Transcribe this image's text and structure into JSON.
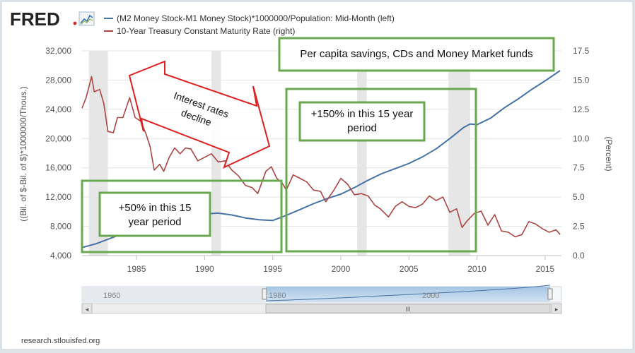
{
  "header": {
    "logo_text": "FRED",
    "logo_accent_color": "#cc2d2d",
    "logo_icon": "line-chart-icon"
  },
  "legend": [
    {
      "label": "(M2 Money Stock-M1 Money Stock)*1000000/Population: Mid-Month (left)",
      "color": "#4572a7"
    },
    {
      "label": "10-Year Treasury Constant Maturity Rate (right)",
      "color": "#aa4643"
    }
  ],
  "annotations": {
    "top_box": "Per capita savings, CDs and Money Market funds",
    "arrow_text": [
      "Interest rates",
      "decline"
    ],
    "box_150": [
      "+150% in this 15 year",
      "period"
    ],
    "box_50": [
      "+50% in this 15",
      "year period"
    ],
    "box_color": "#6aa84f"
  },
  "navigator": {
    "labels": [
      "1960",
      "1980",
      "2000"
    ],
    "left_arrow": "◂",
    "right_arrow": "▸",
    "grip": "III"
  },
  "footer": {
    "source": "research.stlouisfed.org"
  },
  "chart_data": {
    "type": "line",
    "xlim": [
      1981,
      2016.2
    ],
    "x_ticks": [
      "1985",
      "1990",
      "1995",
      "2000",
      "2005",
      "2010",
      "2015"
    ],
    "y_left": {
      "label": "((Bil. of $-Bil. of $)*1000000/Thous.)",
      "ylim": [
        4000,
        32000
      ],
      "ticks": [
        "4,000",
        "8,000",
        "12,000",
        "16,000",
        "20,000",
        "24,000",
        "28,000",
        "32,000"
      ]
    },
    "y_right": {
      "label": "(Percent)",
      "ylim": [
        0,
        17.5
      ],
      "ticks": [
        "0.0",
        "2.5",
        "5.0",
        "7.5",
        "10.0",
        "12.5",
        "15.0",
        "17.5"
      ]
    },
    "recessions": [
      [
        1981.5,
        1982.9
      ],
      [
        1990.5,
        1991.2
      ],
      [
        2001.2,
        2001.9
      ],
      [
        2007.9,
        2009.5
      ]
    ],
    "series": [
      {
        "name": "(M2 Money Stock-M1 Money Stock)*1000000/Population: Mid-Month (left)",
        "axis": "left",
        "color": "#4572a7",
        "x": [
          1981,
          1982,
          1983,
          1984,
          1985,
          1986,
          1987,
          1988,
          1989,
          1990,
          1991,
          1992,
          1993,
          1994,
          1995,
          1996,
          1997,
          1998,
          1999,
          2000,
          2001,
          2002,
          2003,
          2004,
          2005,
          2006,
          2007,
          2008,
          2009,
          2009.5,
          2010,
          2011,
          2012,
          2013,
          2014,
          2015,
          2016.1
        ],
        "y": [
          5100,
          5600,
          6300,
          7000,
          7600,
          8100,
          8500,
          8900,
          9300,
          9700,
          9800,
          9550,
          9150,
          8900,
          8800,
          9500,
          10300,
          11100,
          11800,
          12400,
          13300,
          14300,
          15200,
          15900,
          16600,
          17500,
          18600,
          20000,
          21500,
          22000,
          21900,
          22800,
          24200,
          25400,
          26700,
          27900,
          29300
        ]
      },
      {
        "name": "10-Year Treasury Constant Maturity Rate (right)",
        "axis": "right",
        "color": "#aa4643",
        "x": [
          1981,
          1981.3,
          1981.7,
          1981.9,
          1982.3,
          1982.6,
          1982.9,
          1983.3,
          1983.6,
          1984.0,
          1984.5,
          1984.9,
          1985.3,
          1985.7,
          1986.0,
          1986.3,
          1986.7,
          1987.0,
          1987.4,
          1987.8,
          1988.2,
          1988.6,
          1989.0,
          1989.5,
          1990.0,
          1990.5,
          1991.0,
          1991.5,
          1992.0,
          1992.5,
          1993.0,
          1993.5,
          1993.9,
          1994.5,
          1994.9,
          1995.3,
          1995.7,
          1996.0,
          1996.5,
          1997.0,
          1997.5,
          1998.0,
          1998.5,
          1998.9,
          1999.5,
          2000.0,
          2000.5,
          2001.0,
          2001.5,
          2002.0,
          2002.5,
          2002.9,
          2003.5,
          2004.0,
          2004.5,
          2005.0,
          2005.5,
          2006.0,
          2006.5,
          2007.0,
          2007.5,
          2008.0,
          2008.5,
          2008.9,
          2009.3,
          2009.8,
          2010.3,
          2010.8,
          2011.3,
          2011.8,
          2012.3,
          2012.8,
          2013.3,
          2013.8,
          2014.3,
          2014.8,
          2015.3,
          2015.8,
          2016.1
        ],
        "y": [
          12.6,
          13.5,
          15.3,
          14.0,
          14.2,
          13.0,
          10.6,
          10.5,
          11.8,
          11.8,
          13.5,
          11.8,
          11.5,
          10.4,
          9.3,
          7.3,
          7.8,
          7.2,
          8.4,
          9.2,
          8.7,
          9.2,
          9.1,
          8.1,
          8.4,
          8.7,
          8.0,
          8.1,
          7.3,
          6.8,
          6.0,
          5.8,
          5.3,
          7.2,
          7.6,
          6.6,
          6.2,
          5.6,
          6.9,
          6.6,
          6.3,
          5.6,
          5.5,
          4.6,
          5.6,
          6.6,
          6.1,
          5.2,
          5.3,
          5.1,
          4.3,
          4.0,
          3.3,
          4.2,
          4.6,
          4.2,
          4.1,
          4.4,
          5.1,
          4.7,
          5.0,
          3.7,
          4.0,
          2.4,
          3.0,
          3.6,
          3.8,
          2.6,
          3.5,
          2.1,
          2.0,
          1.6,
          1.8,
          2.9,
          2.7,
          2.3,
          2.0,
          2.2,
          1.8
        ]
      }
    ]
  }
}
